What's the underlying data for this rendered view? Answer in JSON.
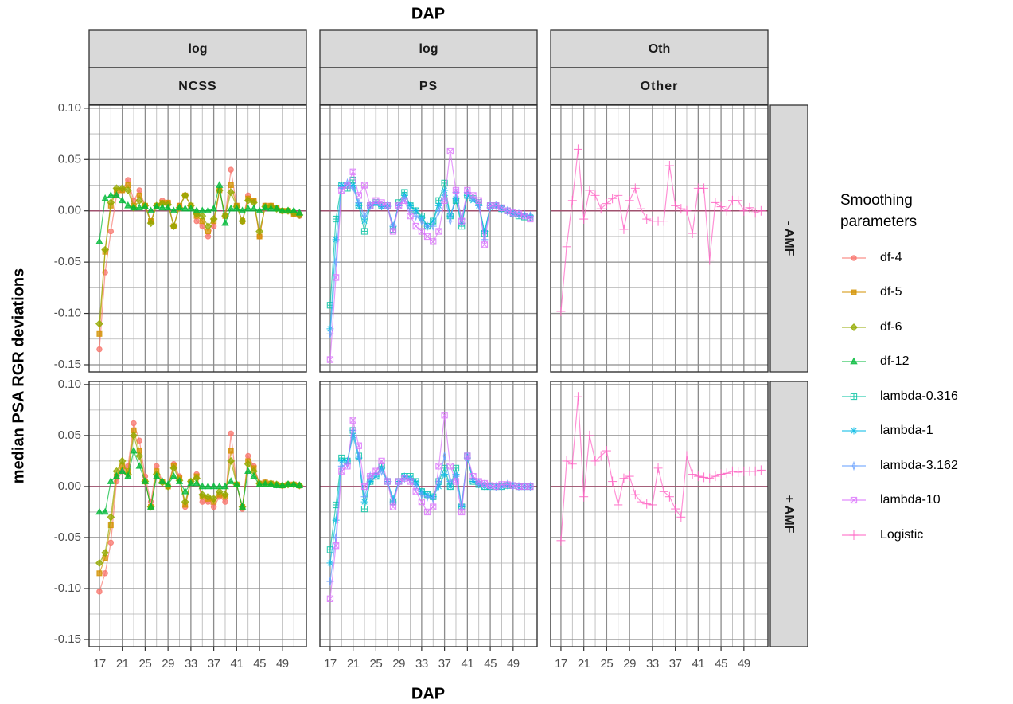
{
  "chart_data": {
    "type": "line",
    "title": "DAP",
    "x_label": "DAP",
    "y_label": "median PSA RGR deviations",
    "legend_title": "Smoothing parameters",
    "columns": [
      {
        "top": "log",
        "bottom": "NCSS"
      },
      {
        "top": "log",
        "bottom": "PS"
      },
      {
        "top": "Oth",
        "bottom": "Other"
      }
    ],
    "rows": [
      "- AMF",
      "+ AMF"
    ],
    "x": [
      17,
      18,
      19,
      20,
      21,
      22,
      23,
      24,
      25,
      26,
      27,
      28,
      29,
      30,
      31,
      32,
      33,
      34,
      35,
      36,
      37,
      38,
      39,
      40,
      41,
      42,
      43,
      44,
      45,
      46,
      47,
      48,
      49,
      50,
      51,
      52
    ],
    "xlim": [
      15.2,
      53.2
    ],
    "xticks": [
      17,
      21,
      25,
      29,
      33,
      37,
      41,
      45,
      49
    ],
    "xminor": [
      19,
      23,
      27,
      31,
      35,
      39,
      43,
      47,
      51
    ],
    "ylim": [
      -0.157,
      0.103
    ],
    "yticks": [
      -0.15,
      {
        "value": -0.1,
        "label": "-0.10"
      },
      -0.05,
      {
        "value": 0,
        "label": "0.00"
      },
      0.05,
      {
        "value": 0.1,
        "label": "0.10"
      }
    ],
    "yminor": [
      -0.125,
      -0.075,
      -0.025,
      0.025,
      0.075
    ],
    "grid": true,
    "hline": {
      "value": 0,
      "color": "#a0526f"
    },
    "series": [
      {
        "name": "df-4",
        "color": "#F8766D",
        "marker": "circle",
        "column": 0,
        "values": [
          [
            -0.135,
            -0.06,
            -0.02,
            0.015,
            0.02,
            0.03,
            0.01,
            0.02,
            0.005,
            -0.01,
            0.005,
            0.01,
            0.008,
            -0.015,
            0.005,
            0.015,
            0.005,
            -0.01,
            -0.015,
            -0.025,
            -0.015,
            0.02,
            -0.005,
            0.04,
            0.005,
            -0.01,
            0.015,
            0.01,
            -0.025,
            0.005,
            0.005,
            0.003,
            0,
            0,
            -0.003,
            -0.005
          ],
          [
            -0.103,
            -0.085,
            -0.055,
            0.005,
            0.015,
            0.02,
            0.062,
            0.045,
            0.01,
            -0.015,
            0.02,
            0.005,
            0,
            0.022,
            0.01,
            -0.02,
            0.005,
            0.012,
            -0.015,
            -0.015,
            -0.02,
            -0.01,
            -0.015,
            0.052,
            0.002,
            -0.022,
            0.03,
            0.02,
            0.003,
            0.004,
            0.003,
            0.002,
            0.001,
            0.002,
            0.002,
            0.001
          ]
        ]
      },
      {
        "name": "df-5",
        "color": "#D39200",
        "marker": "square",
        "column": 0,
        "values": [
          [
            -0.12,
            -0.04,
            0.005,
            0.02,
            0.02,
            0.025,
            0.005,
            0.015,
            0.005,
            -0.01,
            0.005,
            0.008,
            0.008,
            -0.015,
            0.005,
            0.015,
            0.005,
            -0.005,
            -0.01,
            -0.02,
            -0.01,
            0.02,
            -0.005,
            0.025,
            0.005,
            -0.01,
            0.012,
            0.01,
            -0.025,
            0.005,
            0.005,
            0.003,
            0,
            0,
            -0.003,
            -0.004
          ],
          [
            -0.085,
            -0.07,
            -0.038,
            0.01,
            0.02,
            0.015,
            0.055,
            0.035,
            0.005,
            -0.02,
            0.015,
            0.005,
            0,
            0.02,
            0.008,
            -0.018,
            0.005,
            0.01,
            -0.01,
            -0.012,
            -0.015,
            -0.008,
            -0.01,
            0.035,
            0.002,
            -0.02,
            0.025,
            0.018,
            0.003,
            0.004,
            0.003,
            0.002,
            0.001,
            0.002,
            0.002,
            0.001
          ]
        ]
      },
      {
        "name": "df-6",
        "color": "#93AA00",
        "marker": "diamond",
        "column": 0,
        "values": [
          [
            -0.11,
            -0.038,
            0.008,
            0.022,
            0.022,
            0.02,
            0.003,
            0.01,
            0.005,
            -0.012,
            0.005,
            0.007,
            0.006,
            -0.015,
            0.003,
            0.015,
            0.005,
            -0.003,
            -0.005,
            -0.015,
            -0.008,
            0.02,
            -0.005,
            0.018,
            0.004,
            -0.01,
            0.01,
            0.008,
            -0.02,
            0.004,
            0.004,
            0.002,
            0,
            0,
            -0.002,
            -0.004
          ],
          [
            -0.075,
            -0.065,
            -0.03,
            0.015,
            0.025,
            0.012,
            0.05,
            0.03,
            0.005,
            -0.02,
            0.012,
            0.004,
            0,
            0.018,
            0.006,
            -0.015,
            0.005,
            0.008,
            -0.008,
            -0.01,
            -0.012,
            -0.005,
            -0.008,
            0.025,
            0.002,
            -0.02,
            0.022,
            0.015,
            0.003,
            0.003,
            0.003,
            0.002,
            0.001,
            0.002,
            0.002,
            0.001
          ]
        ]
      },
      {
        "name": "df-12",
        "color": "#00BA38",
        "marker": "triangle",
        "column": 0,
        "values": [
          [
            -0.03,
            0.012,
            0.015,
            0.015,
            0.01,
            0.005,
            0.003,
            0.003,
            0.004,
            0,
            0.004,
            0.003,
            0.003,
            0,
            0.003,
            0.002,
            0.002,
            0,
            0,
            0,
            0.002,
            0.025,
            -0.012,
            0.002,
            0.002,
            0,
            0.002,
            0.002,
            0,
            0.003,
            0.002,
            0.002,
            0,
            0,
            0,
            -0.002
          ],
          [
            -0.025,
            -0.025,
            0.005,
            0.01,
            0.015,
            0.01,
            0.035,
            0.02,
            0.005,
            -0.02,
            0.01,
            0.005,
            0.002,
            0.01,
            0.005,
            -0.005,
            0.003,
            0.003,
            0,
            0,
            0,
            0,
            0,
            0.005,
            0.002,
            -0.02,
            0.015,
            0.01,
            0.002,
            0.002,
            0.002,
            0.001,
            0.001,
            0.002,
            0.002,
            0.001
          ]
        ]
      },
      {
        "name": "lambda-0.316",
        "color": "#00C19F",
        "marker": "squarecross",
        "column": 1,
        "values": [
          [
            -0.092,
            -0.008,
            0.025,
            0.022,
            0.03,
            0.005,
            -0.02,
            0.005,
            0.008,
            0.005,
            0.005,
            -0.018,
            0.008,
            0.018,
            0.005,
            0,
            -0.005,
            -0.015,
            -0.01,
            0.01,
            0.027,
            -0.005,
            0.01,
            -0.015,
            0.015,
            0.012,
            0.008,
            -0.022,
            0.005,
            0.005,
            0.002,
            0,
            -0.003,
            -0.005,
            -0.006,
            -0.007
          ],
          [
            -0.062,
            -0.018,
            0.028,
            0.025,
            0.055,
            0.03,
            -0.022,
            0.005,
            0.01,
            0.02,
            0.005,
            -0.015,
            0.005,
            0.01,
            0.01,
            0.005,
            -0.005,
            -0.008,
            -0.01,
            0.005,
            0.018,
            0,
            0.018,
            -0.02,
            0.03,
            0.005,
            0.002,
            0,
            0,
            0,
            0,
            0.001,
            0.001,
            0,
            0,
            0
          ]
        ]
      },
      {
        "name": "lambda-1",
        "color": "#00B9E3",
        "marker": "asterisk",
        "column": 1,
        "values": [
          [
            -0.115,
            -0.028,
            0.025,
            0.025,
            0.025,
            0.005,
            -0.01,
            0.005,
            0.007,
            0.004,
            0.004,
            -0.015,
            0.005,
            0.015,
            0.005,
            0,
            -0.007,
            -0.015,
            -0.01,
            0.005,
            0.02,
            -0.005,
            0.012,
            -0.012,
            0.015,
            0.01,
            0.005,
            -0.02,
            0.003,
            0.005,
            0.002,
            0,
            -0.003,
            -0.004,
            -0.005,
            -0.006
          ],
          [
            -0.075,
            -0.033,
            0.025,
            0.025,
            0.05,
            0.028,
            -0.015,
            0.005,
            0.01,
            0.018,
            0.005,
            -0.012,
            0.005,
            0.01,
            0.008,
            0.004,
            -0.005,
            -0.008,
            -0.01,
            0,
            0.012,
            0,
            0.012,
            -0.02,
            0.028,
            0.005,
            0.002,
            0,
            0,
            0,
            0,
            0.001,
            0.001,
            0,
            0,
            0
          ]
        ]
      },
      {
        "name": "lambda-3.162",
        "color": "#619CFF",
        "marker": "star",
        "column": 1,
        "values": [
          [
            -0.12,
            -0.05,
            0.022,
            0.027,
            0.022,
            0.008,
            -0.005,
            0.005,
            0.008,
            0.005,
            0.005,
            -0.015,
            0.005,
            0.012,
            0,
            -0.005,
            -0.01,
            -0.015,
            -0.015,
            0,
            0.015,
            -0.01,
            0.018,
            -0.008,
            0.018,
            0.012,
            0.005,
            -0.028,
            0.005,
            0.005,
            0.002,
            0,
            -0.002,
            -0.003,
            -0.004,
            -0.005
          ],
          [
            -0.093,
            -0.05,
            0.02,
            0.022,
            0.055,
            0.03,
            -0.01,
            0.01,
            0.012,
            0.015,
            0.005,
            -0.015,
            0.003,
            0.008,
            0.006,
            0,
            -0.008,
            -0.01,
            -0.012,
            0.005,
            0.03,
            0.005,
            0.01,
            -0.018,
            0.03,
            0.008,
            0.004,
            0.002,
            0,
            0,
            0.001,
            0.002,
            0.001,
            0,
            0,
            0
          ]
        ]
      },
      {
        "name": "lambda-10",
        "color": "#DB72FB",
        "marker": "squarex",
        "column": 1,
        "values": [
          [
            -0.145,
            -0.065,
            0.02,
            0.025,
            0.038,
            0.015,
            0.025,
            0.005,
            0.01,
            0.008,
            0.005,
            -0.02,
            0.005,
            0.01,
            -0.005,
            -0.015,
            -0.02,
            -0.025,
            -0.03,
            -0.02,
            0.01,
            0.058,
            0.02,
            -0.01,
            0.02,
            0.015,
            0.01,
            -0.033,
            0.005,
            0.005,
            0.003,
            0,
            -0.002,
            -0.003,
            -0.005,
            -0.008
          ],
          [
            -0.11,
            -0.058,
            0.015,
            0.02,
            0.065,
            0.04,
            0,
            0.01,
            0.015,
            0.025,
            0.005,
            -0.02,
            0.005,
            0.008,
            0.005,
            -0.005,
            -0.015,
            -0.025,
            -0.02,
            0.02,
            0.07,
            0.02,
            0.005,
            -0.025,
            0.03,
            0.01,
            0.005,
            0.003,
            0.001,
            0,
            0.002,
            0.002,
            0.001,
            0,
            0,
            0
          ]
        ]
      },
      {
        "name": "Logistic",
        "color": "#FF61C3",
        "marker": "plus",
        "column": 2,
        "values": [
          [
            -0.098,
            -0.035,
            0.01,
            0.06,
            -0.008,
            0.02,
            0.015,
            0.002,
            0.007,
            0.012,
            0.015,
            -0.018,
            0.01,
            0.022,
            0.002,
            -0.008,
            -0.01,
            -0.01,
            -0.01,
            0.044,
            0.005,
            0.002,
            0,
            -0.022,
            0.022,
            0.022,
            -0.048,
            0.008,
            0.004,
            0,
            0.01,
            0.01,
            0,
            0.003,
            -0.002,
            0
          ],
          [
            -0.053,
            0.025,
            0.022,
            0.088,
            -0.01,
            0.05,
            0.025,
            0.03,
            0.035,
            0.005,
            -0.018,
            0.008,
            0.01,
            -0.008,
            -0.015,
            -0.017,
            -0.018,
            0.018,
            -0.005,
            -0.01,
            -0.022,
            -0.03,
            0.03,
            0.012,
            0.01,
            0.009,
            0.008,
            0.01,
            0.012,
            0.013,
            0.015,
            0.014,
            0.015,
            0.015,
            0.015,
            0.016
          ]
        ]
      }
    ]
  }
}
